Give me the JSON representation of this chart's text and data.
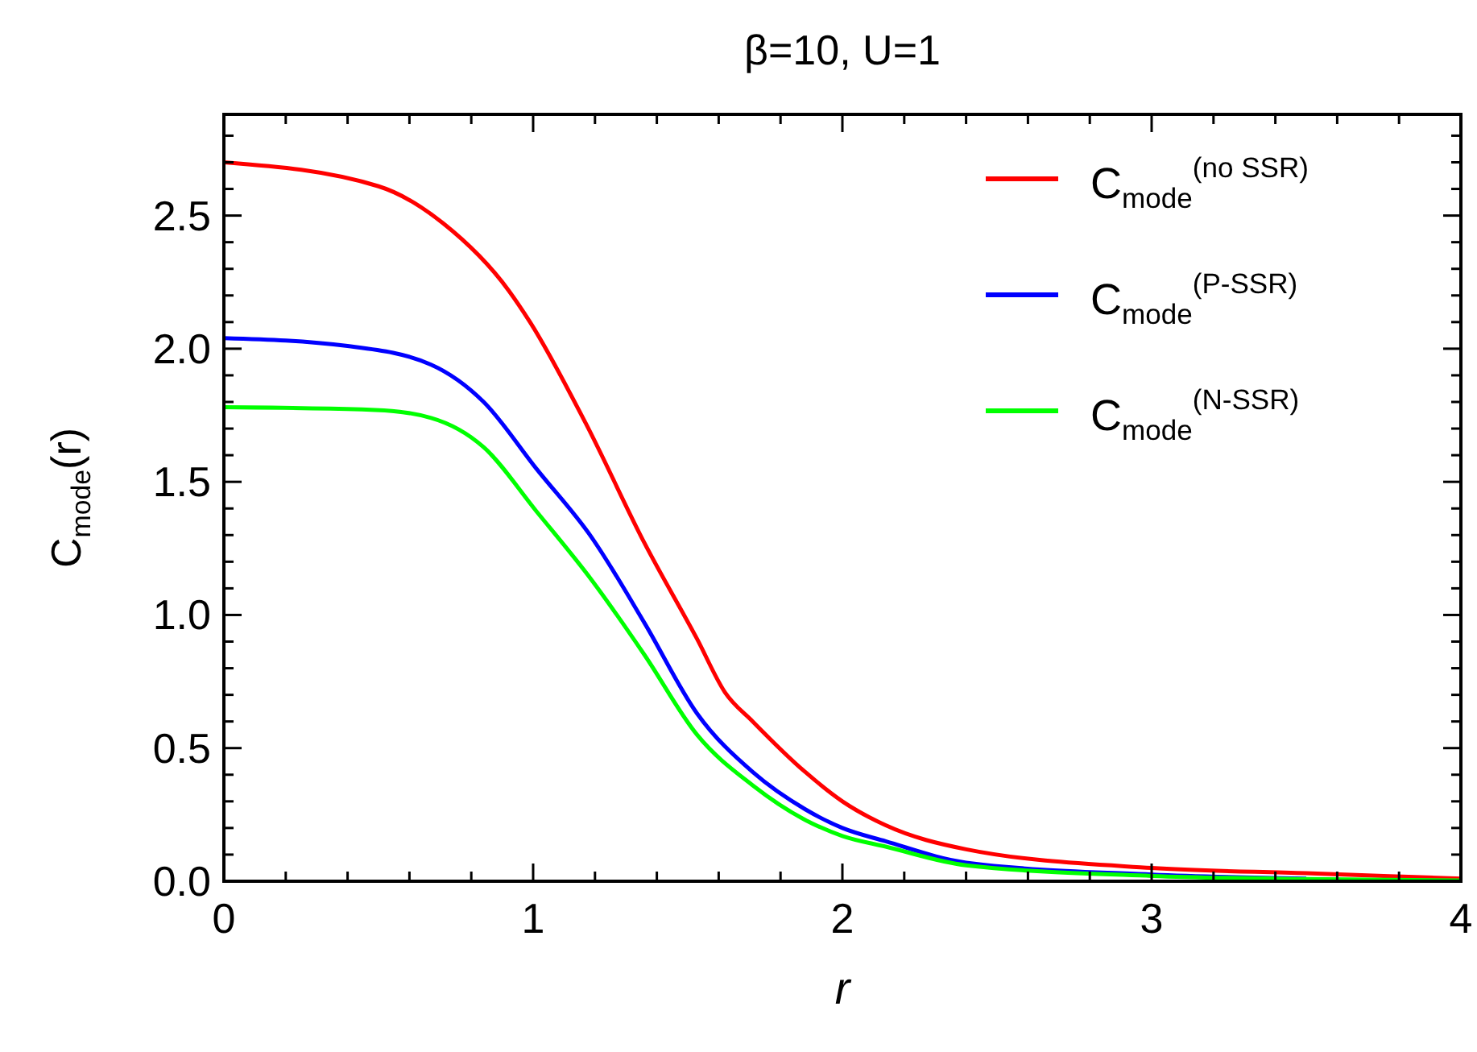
{
  "chart_data": {
    "type": "line",
    "title": "β=10, U=1",
    "xlabel": "r",
    "ylabel": "C$_{mode}$(r)",
    "xlim": [
      0,
      4
    ],
    "ylim": [
      0,
      2.88
    ],
    "xticks": [
      0,
      {
        "value": 0.2,
        "label": null
      },
      {
        "value": 0.4,
        "label": null
      },
      {
        "value": 0.6,
        "label": null
      },
      {
        "value": 0.8,
        "label": null
      },
      1,
      {
        "value": 1.2,
        "label": null
      },
      {
        "value": 1.4,
        "label": null
      },
      {
        "value": 1.6,
        "label": null
      },
      {
        "value": 1.8,
        "label": null
      },
      2,
      {
        "value": 2.2,
        "label": null
      },
      {
        "value": 2.4,
        "label": null
      },
      {
        "value": 2.6,
        "label": null
      },
      {
        "value": 2.8,
        "label": null
      },
      3,
      {
        "value": 3.2,
        "label": null
      },
      {
        "value": 3.4,
        "label": null
      },
      {
        "value": 3.6,
        "label": null
      },
      {
        "value": 3.8,
        "label": null
      },
      4
    ],
    "yticks": [
      {
        "value": 0,
        "label": "0.0"
      },
      {
        "value": 0.1,
        "label": null
      },
      {
        "value": 0.2,
        "label": null
      },
      {
        "value": 0.3,
        "label": null
      },
      {
        "value": 0.4,
        "label": null
      },
      0.5,
      {
        "value": 0.6,
        "label": null
      },
      {
        "value": 0.7,
        "label": null
      },
      {
        "value": 0.8,
        "label": null
      },
      {
        "value": 0.9,
        "label": null
      },
      {
        "value": 1,
        "label": "1.0"
      },
      {
        "value": 1.1,
        "label": null
      },
      {
        "value": 1.2,
        "label": null
      },
      {
        "value": 1.3,
        "label": null
      },
      {
        "value": 1.4,
        "label": null
      },
      1.5,
      {
        "value": 1.6,
        "label": null
      },
      {
        "value": 1.7,
        "label": null
      },
      {
        "value": 1.8,
        "label": null
      },
      {
        "value": 1.9,
        "label": null
      },
      {
        "value": 2,
        "label": "2.0"
      },
      {
        "value": 2.1,
        "label": null
      },
      {
        "value": 2.2,
        "label": null
      },
      {
        "value": 2.3,
        "label": null
      },
      {
        "value": 2.4,
        "label": null
      },
      2.5,
      {
        "value": 2.6,
        "label": null
      },
      {
        "value": 2.7,
        "label": null
      },
      {
        "value": 2.8,
        "label": null
      }
    ],
    "grid": false,
    "legend": "top right",
    "marker": "none",
    "line_style": "solid",
    "series": [
      {
        "name": "C$_{mode}$$^{(no SSR)}$",
        "color": "#ff0000",
        "x": [
          0,
          0.5,
          0.71,
          0.92,
          0.99,
          1.17,
          1.36,
          1.53,
          1.62,
          1.71,
          1.88,
          2,
          2.14,
          2.4,
          3,
          3.5,
          4
        ],
        "values": [
          2.7,
          2.61,
          2.47,
          2.22,
          2.1,
          1.72,
          1.27,
          0.91,
          0.71,
          0.6,
          0.41,
          0.3,
          0.21,
          0.12,
          0.05,
          0.03,
          0.01
        ]
      },
      {
        "name": "C$_{mode}$$^{(P-SSR)}$",
        "color": "#0000ff",
        "x": [
          0,
          0.4,
          0.67,
          0.84,
          1.01,
          1.19,
          1.36,
          1.53,
          1.71,
          1.88,
          2,
          2.14,
          2.4,
          3,
          3.5
        ],
        "values": [
          2.04,
          2.01,
          1.94,
          1.8,
          1.55,
          1.29,
          0.97,
          0.63,
          0.41,
          0.27,
          0.2,
          0.15,
          0.07,
          0.025,
          0.01
        ]
      },
      {
        "name": "C$_{mode}$$^{(N-SSR)}$",
        "color": "#00ff00",
        "x": [
          0,
          0.49,
          0.67,
          0.84,
          1.01,
          1.19,
          1.36,
          1.53,
          1.71,
          1.88,
          2,
          2.14,
          2.4,
          3,
          3.5,
          4
        ],
        "values": [
          1.78,
          1.77,
          1.74,
          1.63,
          1.39,
          1.13,
          0.85,
          0.55,
          0.36,
          0.23,
          0.17,
          0.13,
          0.06,
          0.02,
          0.008,
          0.003
        ]
      }
    ]
  }
}
